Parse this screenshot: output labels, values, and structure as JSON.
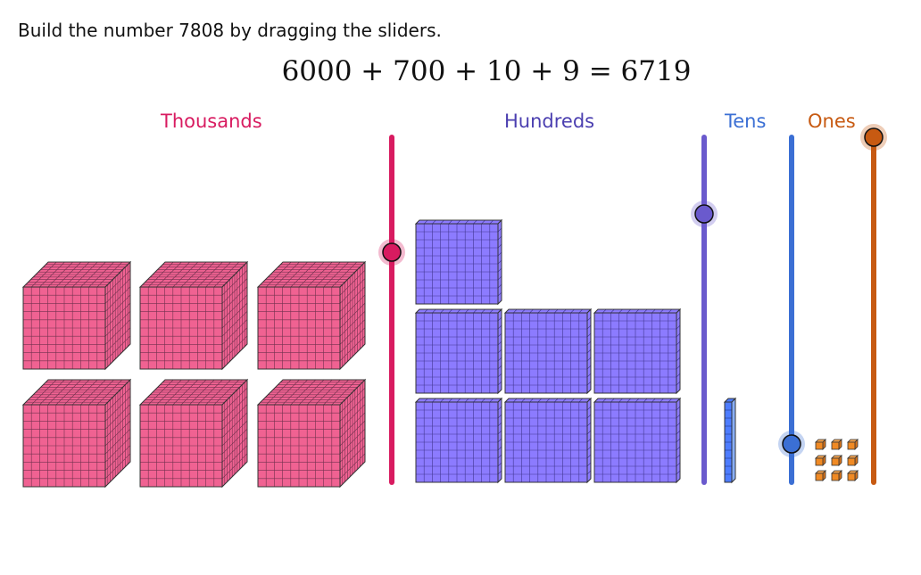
{
  "instruction": "Build the number 7808 by dragging the sliders.",
  "equation": "6000 + 700 + 10 + 9 = 6719",
  "labels": {
    "thousands": "Thousands",
    "hundreds": "Hundreds",
    "tens": "Tens",
    "ones": "Ones"
  },
  "values": {
    "thousands": 6,
    "hundreds": 7,
    "tens": 1,
    "ones": 9
  },
  "slider_max": 9,
  "colors": {
    "thousands": "#d81b60",
    "thousands_block": "#f06292",
    "hundreds": "#6a5acd",
    "hundreds_block": "#8c7bff",
    "tens": "#3b6fd4",
    "tens_block": "#4d7cff",
    "ones": "#c75a12",
    "ones_block": "#f08a24"
  }
}
